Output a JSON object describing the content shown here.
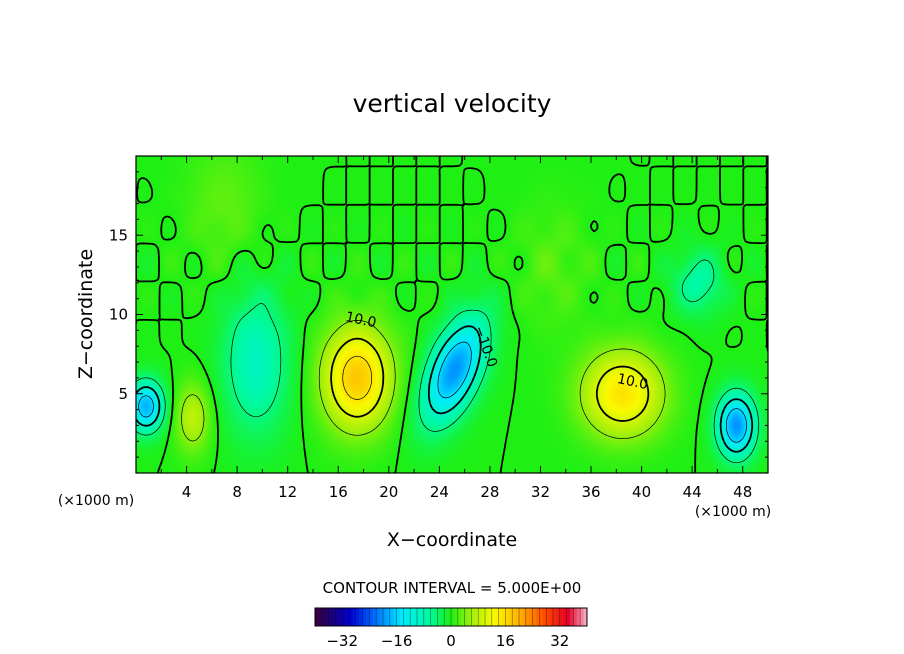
{
  "chart_data": {
    "type": "heatmap",
    "title": "vertical velocity",
    "xlabel": "X−coordinate",
    "ylabel": "Z−coordinate",
    "x_unit_label": "(×1000 m)",
    "y_unit_label": "(×1000 m)",
    "xlim": [
      0,
      50
    ],
    "ylim": [
      0,
      20
    ],
    "x_ticks": [
      4,
      8,
      12,
      16,
      20,
      24,
      28,
      32,
      36,
      40,
      44,
      48
    ],
    "y_ticks": [
      5,
      10,
      15
    ],
    "contour_interval_text": "CONTOUR INTERVAL = 5.000E+00",
    "contour_labels": [
      {
        "text": "10.0",
        "x": 17.8,
        "z": 9.7
      },
      {
        "text": "−10.0",
        "x": 27.7,
        "z": 8.0
      },
      {
        "text": "10.0",
        "x": 39.3,
        "z": 5.8
      }
    ],
    "colorbar": {
      "min": -40,
      "max": 40,
      "tick_values": [
        -32,
        -16,
        0,
        16,
        32
      ],
      "tick_labels": [
        "−32",
        "−16",
        "0",
        "16",
        "32"
      ]
    },
    "features": [
      {
        "kind": "updraft",
        "x": 17.5,
        "z": 6.0,
        "peak": 18
      },
      {
        "kind": "updraft",
        "x": 38.5,
        "z": 5.0,
        "peak": 15
      },
      {
        "kind": "updraft",
        "x": 4.5,
        "z": 3.5,
        "peak": 8
      },
      {
        "kind": "downdraft",
        "x": 25.0,
        "z": 6.5,
        "peak": -20
      },
      {
        "kind": "downdraft",
        "x": 47.5,
        "z": 3.0,
        "peak": -20
      },
      {
        "kind": "downdraft",
        "x": 0.8,
        "z": 4.2,
        "peak": -18
      },
      {
        "kind": "downdraft",
        "x": 9.5,
        "z": 7.0,
        "peak": -9
      },
      {
        "kind": "downdraft",
        "x": 44.5,
        "z": 12.0,
        "peak": -7
      }
    ]
  }
}
